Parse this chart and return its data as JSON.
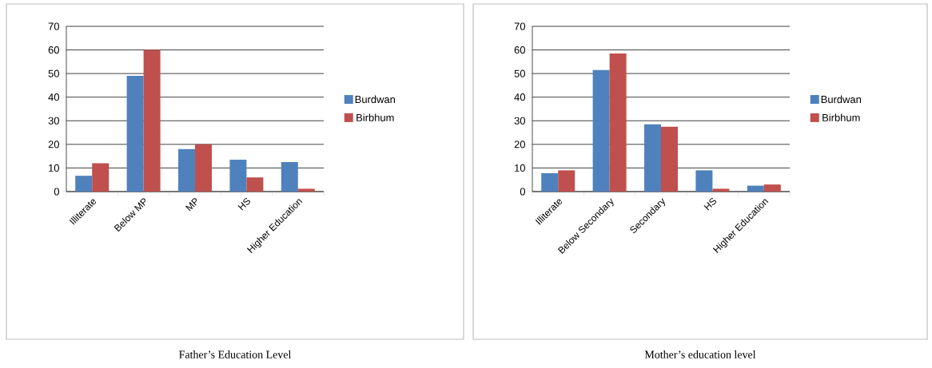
{
  "chart_data": [
    {
      "type": "bar",
      "title": "Father’s Education Level",
      "categories": [
        "Illiterate",
        "Below MP",
        "MP",
        "HS",
        "Higher Education"
      ],
      "series": [
        {
          "name": "Burdwan",
          "color": "#4f81bd",
          "values": [
            6.7,
            49,
            18,
            13.5,
            12.5
          ]
        },
        {
          "name": "Birbhum",
          "color": "#c0504d",
          "values": [
            12,
            60,
            20,
            6,
            1.2
          ]
        }
      ],
      "ylim": [
        0,
        70
      ],
      "yticks": [
        0,
        10,
        20,
        30,
        40,
        50,
        60,
        70
      ],
      "grid": "y",
      "legend": "right"
    },
    {
      "type": "bar",
      "title": "Mother’s education level",
      "categories": [
        "Illiterate",
        "Below Secondary",
        "Secondary",
        "HS",
        "Higher Education"
      ],
      "series": [
        {
          "name": "Burdwan",
          "color": "#4f81bd",
          "values": [
            7.8,
            51.5,
            28.5,
            9,
            2.5
          ]
        },
        {
          "name": "Birbhum",
          "color": "#c0504d",
          "values": [
            9,
            58.5,
            27.5,
            1.2,
            3
          ]
        }
      ],
      "ylim": [
        0,
        70
      ],
      "yticks": [
        0,
        10,
        20,
        30,
        40,
        50,
        60,
        70
      ],
      "grid": "y",
      "legend": "right"
    }
  ]
}
